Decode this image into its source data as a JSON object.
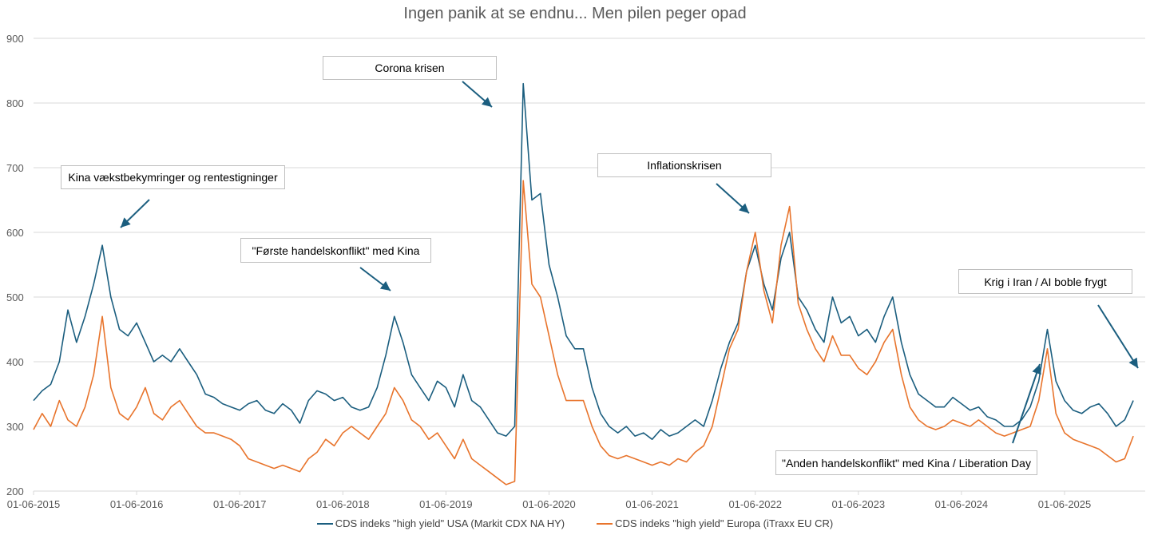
{
  "chart_data": {
    "type": "line",
    "title": "Ingen panik at se endnu... Men pilen peger opad",
    "xlabel": "",
    "ylabel": "",
    "ylim": [
      200,
      900
    ],
    "yticks": [
      200,
      300,
      400,
      500,
      600,
      700,
      800,
      900
    ],
    "xticks": [
      "01-06-2015",
      "01-06-2016",
      "01-06-2017",
      "01-06-2018",
      "01-06-2019",
      "01-06-2020",
      "01-06-2021",
      "01-06-2022",
      "01-06-2023",
      "01-06-2024",
      "01-06-2025"
    ],
    "grid": "horizontal",
    "legend_position": "bottom",
    "x": [
      "2015-06",
      "2015-07",
      "2015-08",
      "2015-09",
      "2015-10",
      "2015-11",
      "2015-12",
      "2016-01",
      "2016-02",
      "2016-03",
      "2016-04",
      "2016-05",
      "2016-06",
      "2016-07",
      "2016-08",
      "2016-09",
      "2016-10",
      "2016-11",
      "2016-12",
      "2017-01",
      "2017-02",
      "2017-03",
      "2017-04",
      "2017-05",
      "2017-06",
      "2017-07",
      "2017-08",
      "2017-09",
      "2017-10",
      "2017-11",
      "2017-12",
      "2018-01",
      "2018-02",
      "2018-03",
      "2018-04",
      "2018-05",
      "2018-06",
      "2018-07",
      "2018-08",
      "2018-09",
      "2018-10",
      "2018-11",
      "2018-12",
      "2019-01",
      "2019-02",
      "2019-03",
      "2019-04",
      "2019-05",
      "2019-06",
      "2019-07",
      "2019-08",
      "2019-09",
      "2019-10",
      "2019-11",
      "2019-12",
      "2020-01",
      "2020-02",
      "2020-03",
      "2020-04",
      "2020-05",
      "2020-06",
      "2020-07",
      "2020-08",
      "2020-09",
      "2020-10",
      "2020-11",
      "2020-12",
      "2021-01",
      "2021-02",
      "2021-03",
      "2021-04",
      "2021-05",
      "2021-06",
      "2021-07",
      "2021-08",
      "2021-09",
      "2021-10",
      "2021-11",
      "2021-12",
      "2022-01",
      "2022-02",
      "2022-03",
      "2022-04",
      "2022-05",
      "2022-06",
      "2022-07",
      "2022-08",
      "2022-09",
      "2022-10",
      "2022-11",
      "2022-12",
      "2023-01",
      "2023-02",
      "2023-03",
      "2023-04",
      "2023-05",
      "2023-06",
      "2023-07",
      "2023-08",
      "2023-09",
      "2023-10",
      "2023-11",
      "2023-12",
      "2024-01",
      "2024-02",
      "2024-03",
      "2024-04",
      "2024-05",
      "2024-06",
      "2024-07",
      "2024-08",
      "2024-09",
      "2024-10",
      "2024-11",
      "2024-12",
      "2025-01",
      "2025-02",
      "2025-03",
      "2025-04",
      "2025-05",
      "2025-06",
      "2025-07",
      "2025-08",
      "2025-09",
      "2025-10",
      "2025-11",
      "2025-12",
      "2026-01",
      "2026-02"
    ],
    "series": [
      {
        "name": "CDS indeks \"high yield\" USA (Markit CDX NA HY)",
        "color": "#1b5e7f",
        "values": [
          340,
          355,
          365,
          400,
          480,
          430,
          470,
          520,
          580,
          500,
          450,
          440,
          460,
          430,
          400,
          410,
          400,
          420,
          400,
          380,
          350,
          345,
          335,
          330,
          325,
          335,
          340,
          325,
          320,
          335,
          325,
          305,
          340,
          355,
          350,
          340,
          345,
          330,
          325,
          330,
          360,
          410,
          470,
          430,
          380,
          360,
          340,
          370,
          360,
          330,
          380,
          340,
          330,
          310,
          290,
          285,
          300,
          830,
          650,
          660,
          550,
          500,
          440,
          420,
          420,
          360,
          320,
          300,
          290,
          300,
          285,
          290,
          280,
          295,
          285,
          290,
          300,
          310,
          300,
          340,
          390,
          430,
          460,
          540,
          580,
          520,
          480,
          560,
          600,
          500,
          480,
          450,
          430,
          500,
          460,
          470,
          440,
          450,
          430,
          470,
          500,
          430,
          380,
          350,
          340,
          330,
          330,
          345,
          335,
          325,
          330,
          315,
          310,
          300,
          300,
          310,
          330,
          370,
          450,
          370,
          340,
          325,
          320,
          330,
          335,
          320,
          300,
          310,
          340
        ]
      },
      {
        "name": "CDS indeks \"high yield\" Europa (iTraxx EU CR)",
        "color": "#e8742c",
        "values": [
          295,
          320,
          300,
          340,
          310,
          300,
          330,
          380,
          470,
          360,
          320,
          310,
          330,
          360,
          320,
          310,
          330,
          340,
          320,
          300,
          290,
          290,
          285,
          280,
          270,
          250,
          245,
          240,
          235,
          240,
          235,
          230,
          250,
          260,
          280,
          270,
          290,
          300,
          290,
          280,
          300,
          320,
          360,
          340,
          310,
          300,
          280,
          290,
          270,
          250,
          280,
          250,
          240,
          230,
          220,
          210,
          215,
          680,
          520,
          500,
          440,
          380,
          340,
          340,
          340,
          300,
          270,
          255,
          250,
          255,
          250,
          245,
          240,
          245,
          240,
          250,
          245,
          260,
          270,
          300,
          360,
          420,
          450,
          540,
          600,
          510,
          460,
          580,
          640,
          490,
          450,
          420,
          400,
          440,
          410,
          410,
          390,
          380,
          400,
          430,
          450,
          380,
          330,
          310,
          300,
          295,
          300,
          310,
          305,
          300,
          310,
          300,
          290,
          285,
          290,
          295,
          300,
          340,
          420,
          320,
          290,
          280,
          275,
          270,
          265,
          255,
          245,
          250,
          285
        ]
      }
    ],
    "annotations": [
      "Kina vækstbekymringer og rentestigninger",
      "Corona krisen",
      "\"Første handelskonflikt\" med Kina",
      "Inflationskrisen",
      "Krig i Iran / AI boble frygt",
      "\"Anden handelskonflikt\" med Kina / Liberation Day"
    ],
    "annotation_arrow_color": "#1b5e7f"
  }
}
